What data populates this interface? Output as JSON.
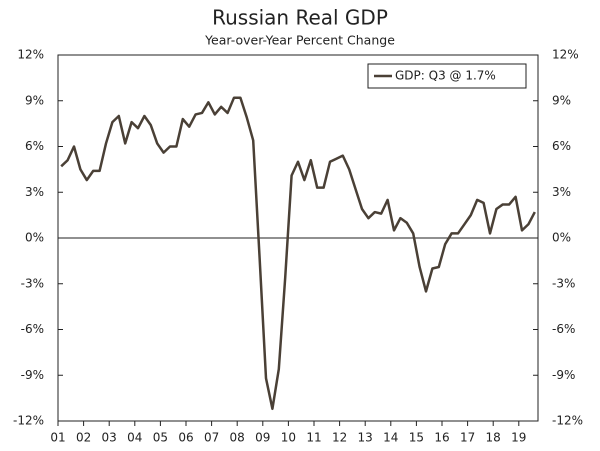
{
  "chart_data": {
    "type": "line",
    "title": "Russian Real GDP",
    "subtitle": "Year-over-Year Percent Change",
    "categories": [
      "01",
      null,
      null,
      null,
      "02",
      null,
      null,
      null,
      "03",
      null,
      null,
      null,
      "04",
      null,
      null,
      null,
      "05",
      null,
      null,
      null,
      "06",
      null,
      null,
      null,
      "07",
      null,
      null,
      null,
      "08",
      null,
      null,
      null,
      "09",
      null,
      null,
      null,
      "10",
      null,
      null,
      null,
      "11",
      null,
      null,
      null,
      "12",
      null,
      null,
      null,
      "13",
      null,
      null,
      null,
      "14",
      null,
      null,
      null,
      "15",
      null,
      null,
      null,
      "16",
      null,
      null,
      null,
      "17",
      null,
      null,
      null,
      "18",
      null,
      null,
      null,
      "19",
      null,
      null
    ],
    "series": [
      {
        "name": "GDP: Q3 @ 1.7%",
        "color": "#4a4036",
        "values": [
          4.7,
          5.1,
          6.0,
          4.5,
          3.8,
          4.4,
          4.4,
          6.2,
          7.6,
          8.0,
          6.2,
          7.6,
          7.2,
          8.0,
          7.4,
          6.2,
          5.6,
          6.0,
          6.0,
          7.8,
          7.3,
          8.1,
          8.2,
          8.9,
          8.1,
          8.6,
          8.2,
          9.2,
          9.2,
          7.9,
          6.4,
          -1.3,
          -9.2,
          -11.2,
          -8.6,
          -2.6,
          4.1,
          5.0,
          3.8,
          5.1,
          3.3,
          3.3,
          5.0,
          5.2,
          5.4,
          4.5,
          3.2,
          1.9,
          1.3,
          1.7,
          1.6,
          2.5,
          0.5,
          1.3,
          1.0,
          0.3,
          -1.9,
          -3.5,
          -2.0,
          -1.9,
          -0.4,
          0.3,
          0.3,
          0.9,
          1.5,
          2.5,
          2.3,
          0.3,
          1.9,
          2.2,
          2.2,
          2.7,
          0.5,
          0.9,
          1.7
        ]
      }
    ],
    "ylim": [
      -12,
      12
    ],
    "yticks": [
      {
        "value": -12,
        "label": "-12%"
      },
      {
        "value": -9,
        "label": "-9%"
      },
      {
        "value": -6,
        "label": "-6%"
      },
      {
        "value": -3,
        "label": "-3%"
      },
      {
        "value": 0,
        "label": "0%"
      },
      {
        "value": 3,
        "label": "3%"
      },
      {
        "value": 6,
        "label": "6%"
      },
      {
        "value": 9,
        "label": "9%"
      },
      {
        "value": 12,
        "label": "12%"
      }
    ],
    "zero_line": true,
    "legend": "upper right"
  }
}
